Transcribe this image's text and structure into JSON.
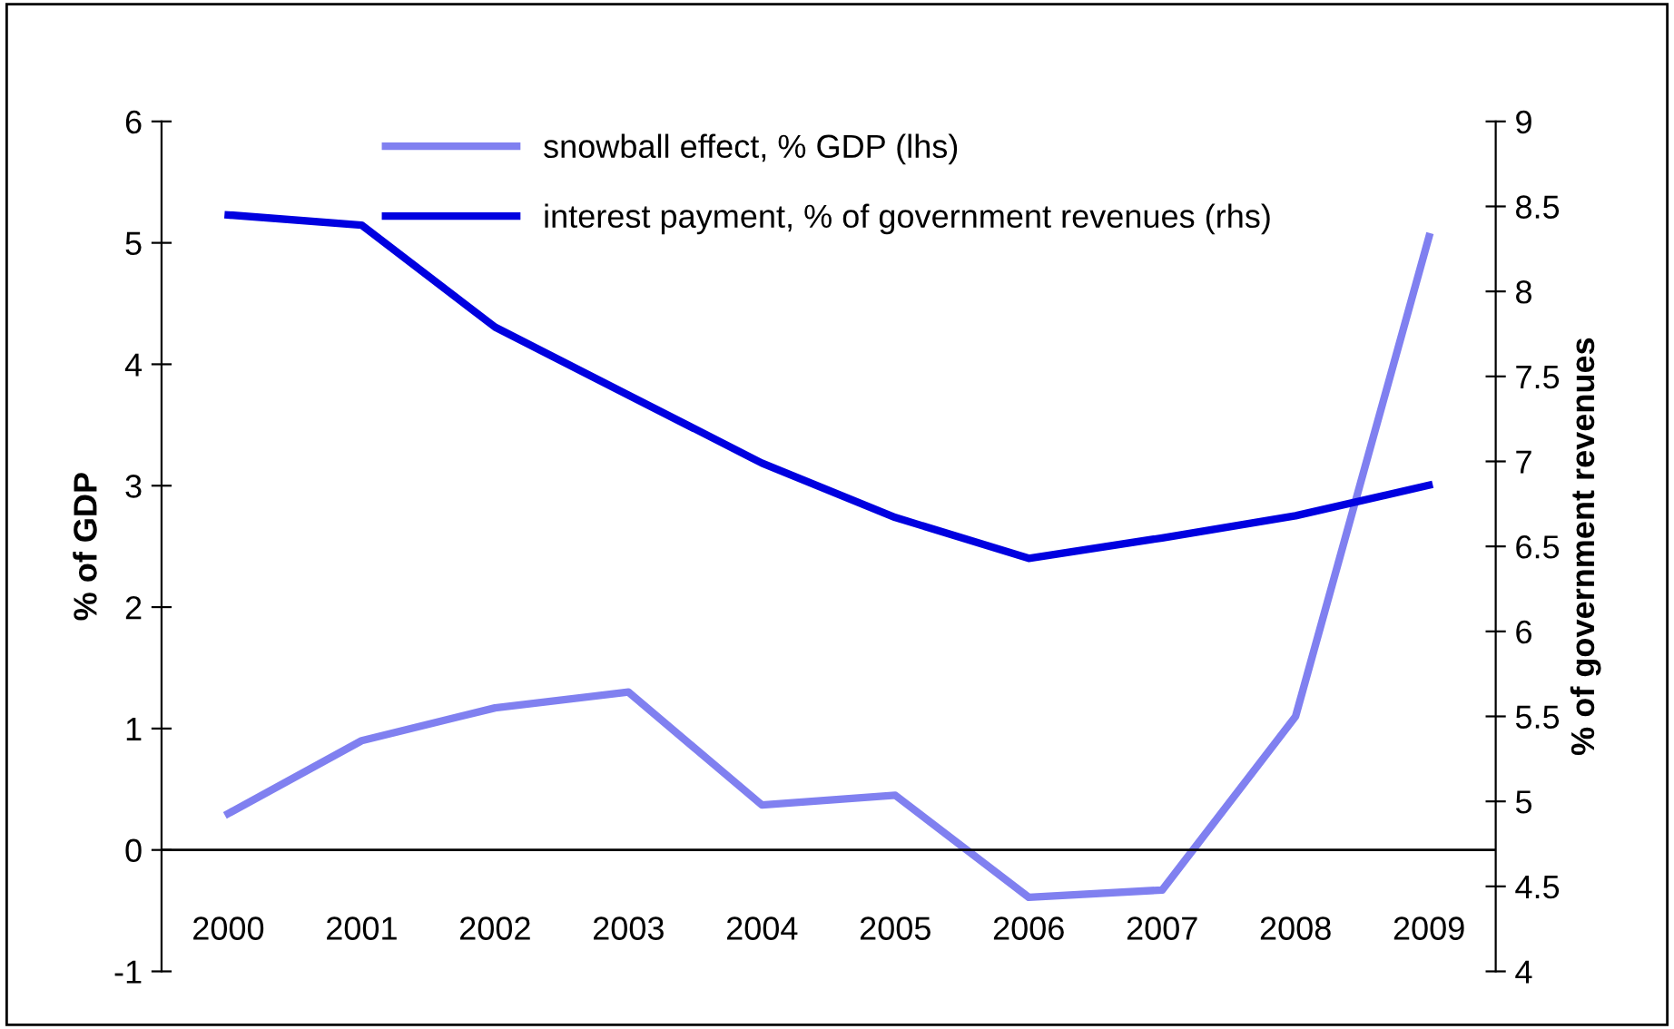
{
  "chart_data": {
    "type": "line",
    "ylabel": "% of GDP",
    "y2label": "% of government revenues",
    "categories": [
      "2000",
      "2001",
      "2002",
      "2003",
      "2004",
      "2005",
      "2006",
      "2007",
      "2008",
      "2009"
    ],
    "series": [
      {
        "name": "snowball effect, % GDP (lhs)",
        "color": "#8080f0",
        "values": [
          0.3,
          0.9,
          1.17,
          1.3,
          0.37,
          0.45,
          -0.39,
          -0.33,
          1.1,
          5.05
        ]
      },
      {
        "name": "interest payment, % of government revenues (rhs)",
        "color": "#0000e0",
        "axis": "y2",
        "values": [
          8.45,
          8.39,
          7.79,
          7.39,
          6.99,
          6.67,
          6.43,
          6.55,
          6.68,
          6.86
        ]
      }
    ],
    "ylim": [
      -1,
      6
    ],
    "yticks": [
      -1,
      0,
      1,
      2,
      3,
      4,
      5,
      6
    ],
    "y2lim": [
      4,
      9
    ],
    "y2ticks": [
      4,
      4.5,
      5,
      5.5,
      6,
      6.5,
      7,
      7.5,
      8,
      8.5,
      9
    ],
    "grid": false,
    "legend": "top",
    "marker": "none",
    "line_style": "solid"
  }
}
